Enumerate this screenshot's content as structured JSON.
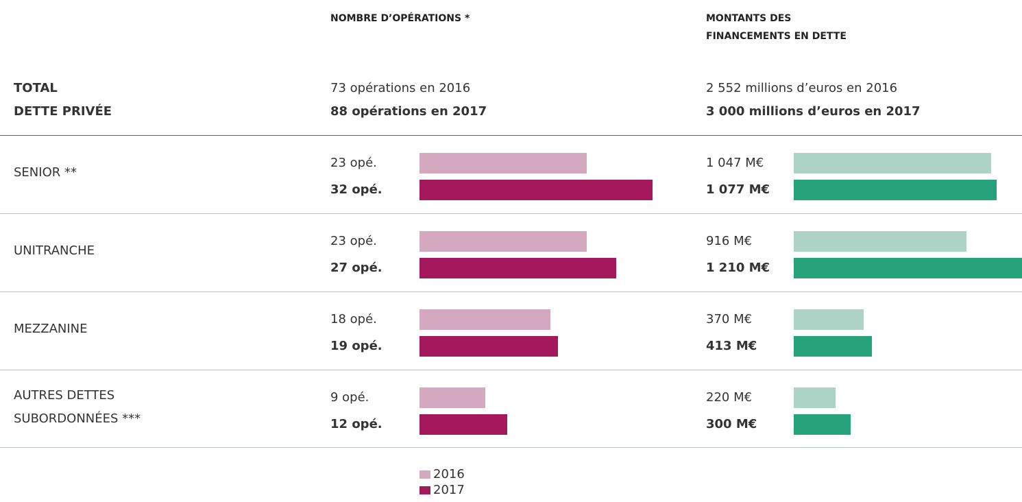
{
  "total_label": [
    "TOTAL",
    "DETTE PRIVÉE"
  ],
  "chart_data": [
    {
      "type": "bar",
      "orientation": "horizontal",
      "title": [
        "NOMBRE D’OPÉRATIONS *"
      ],
      "totals": [
        "73 opérations en 2016",
        "88 opérations en 2017"
      ],
      "categories": [
        "SENIOR **",
        "UNITRANCHE",
        "MEZZANINE",
        "AUTRES DETTES SUBORDONNÉES ***"
      ],
      "xlim": [
        0,
        32
      ],
      "series": [
        {
          "name": "2016",
          "color": "#d4a8bf",
          "values": [
            23,
            23,
            18,
            9
          ],
          "value_labels": [
            "23 opé.",
            "23 opé.",
            "18 opé.",
            "9 opé."
          ]
        },
        {
          "name": "2017",
          "color": "#a3195b",
          "values": [
            32,
            27,
            19,
            12
          ],
          "value_labels": [
            "32 opé.",
            "27 opé.",
            "19 opé.",
            "12 opé."
          ]
        }
      ],
      "legend": true
    },
    {
      "type": "bar",
      "orientation": "horizontal",
      "title": [
        "MONTANTS DES",
        "FINANCEMENTS EN DETTE"
      ],
      "totals": [
        "2 552 millions d’euros en 2016",
        "3 000 millions d’euros en 2017"
      ],
      "xlim": [
        0,
        1210
      ],
      "series": [
        {
          "color": "#acd3c5",
          "values": [
            1047,
            916,
            370,
            220
          ],
          "value_labels": [
            "1 047 M€",
            "916 M€",
            "370 M€",
            "220 M€"
          ]
        },
        {
          "color": "#26a37a",
          "values": [
            1077,
            1210,
            413,
            300
          ],
          "value_labels": [
            "1 077 M€",
            "1 210 M€",
            "413 M€",
            "300 M€"
          ]
        }
      ],
      "legend": false
    }
  ]
}
